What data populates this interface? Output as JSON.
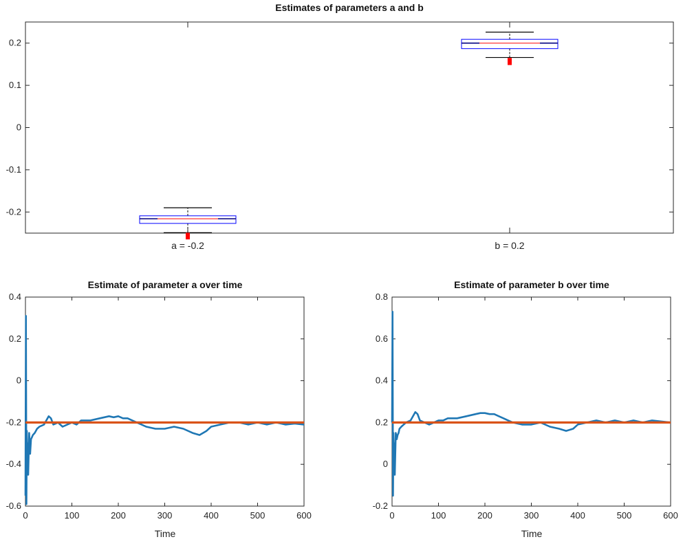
{
  "chart_data": [
    {
      "type": "box",
      "title": "Estimates of parameters a and b",
      "categories": [
        "a = -0.2",
        "b = 0.2"
      ],
      "ylim": [
        -0.25,
        0.25
      ],
      "yticks": [
        "0.2",
        "0.1",
        "0",
        "-0.1",
        "-0.2"
      ],
      "boxes": [
        {
          "name": "a = -0.2",
          "whisker_low": -0.249,
          "q1": -0.227,
          "median": -0.216,
          "q3": -0.209,
          "whisker_high": -0.19,
          "outliers": [
            -0.254,
            -0.256,
            -0.258,
            -0.26
          ]
        },
        {
          "name": "b = 0.2",
          "whisker_low": 0.166,
          "q1": 0.187,
          "median": 0.2,
          "q3": 0.209,
          "whisker_high": 0.226,
          "outliers": [
            0.153,
            0.156,
            0.16
          ]
        }
      ],
      "colors": {
        "box": "#0000ff",
        "median": "#ff0000",
        "whisker": "#000000",
        "outlier": "#ff0000"
      },
      "grid": false
    },
    {
      "type": "line",
      "title": "Estimate of parameter a over time",
      "xlabel": "Time",
      "xlim": [
        0,
        600
      ],
      "ylim": [
        -0.6,
        0.4
      ],
      "xticks": [
        "0",
        "100",
        "200",
        "300",
        "400",
        "500",
        "600"
      ],
      "yticks": [
        "0.4",
        "0.2",
        "0",
        "-0.2",
        "-0.4",
        "-0.6"
      ],
      "series": [
        {
          "x": [
            0,
            1,
            2,
            3,
            4,
            5,
            6,
            8,
            10,
            12,
            14,
            16,
            20,
            25,
            30,
            40,
            50,
            55,
            60,
            70,
            80,
            90,
            100,
            110,
            120,
            140,
            160,
            180,
            190,
            200,
            210,
            220,
            230,
            240,
            250,
            260,
            280,
            300,
            320,
            340,
            360,
            375,
            390,
            400,
            420,
            440,
            460,
            480,
            500,
            520,
            540,
            560,
            580,
            600
          ],
          "y": [
            -0.55,
            0.31,
            -0.59,
            -0.24,
            -0.36,
            -0.3,
            -0.45,
            -0.25,
            -0.35,
            -0.28,
            -0.27,
            -0.26,
            -0.25,
            -0.23,
            -0.22,
            -0.21,
            -0.17,
            -0.18,
            -0.21,
            -0.2,
            -0.22,
            -0.21,
            -0.2,
            -0.21,
            -0.19,
            -0.19,
            -0.18,
            -0.17,
            -0.175,
            -0.17,
            -0.18,
            -0.18,
            -0.19,
            -0.2,
            -0.21,
            -0.22,
            -0.23,
            -0.23,
            -0.22,
            -0.23,
            -0.25,
            -0.26,
            -0.24,
            -0.22,
            -0.21,
            -0.2,
            -0.2,
            -0.21,
            -0.2,
            -0.21,
            -0.2,
            -0.21,
            -0.205,
            -0.21
          ],
          "color": "#1f77b4"
        },
        {
          "x": [
            0,
            600
          ],
          "y": [
            -0.2,
            -0.2
          ],
          "color": "#d95319"
        }
      ]
    },
    {
      "type": "line",
      "title": "Estimate of parameter b over time",
      "xlabel": "Time",
      "xlim": [
        0,
        600
      ],
      "ylim": [
        -0.2,
        0.8
      ],
      "xticks": [
        "0",
        "100",
        "200",
        "300",
        "400",
        "500",
        "600"
      ],
      "yticks": [
        "0.8",
        "0.6",
        "0.4",
        "0.2",
        "0",
        "-0.2"
      ],
      "series": [
        {
          "x": [
            0,
            1,
            2,
            3,
            4,
            5,
            6,
            8,
            10,
            12,
            14,
            16,
            20,
            25,
            30,
            40,
            50,
            55,
            60,
            70,
            80,
            90,
            100,
            110,
            120,
            140,
            160,
            180,
            190,
            200,
            210,
            220,
            230,
            240,
            250,
            260,
            280,
            300,
            320,
            340,
            360,
            375,
            390,
            400,
            420,
            440,
            460,
            480,
            500,
            520,
            540,
            560,
            580,
            600
          ],
          "y": [
            0.2,
            0.73,
            -0.15,
            0.15,
            0.05,
            0.1,
            -0.05,
            0.15,
            0.12,
            0.14,
            0.15,
            0.17,
            0.18,
            0.19,
            0.2,
            0.21,
            0.25,
            0.24,
            0.21,
            0.2,
            0.19,
            0.2,
            0.21,
            0.21,
            0.22,
            0.22,
            0.23,
            0.24,
            0.245,
            0.245,
            0.24,
            0.24,
            0.23,
            0.22,
            0.21,
            0.2,
            0.19,
            0.19,
            0.2,
            0.18,
            0.17,
            0.16,
            0.17,
            0.19,
            0.2,
            0.21,
            0.2,
            0.21,
            0.2,
            0.21,
            0.2,
            0.21,
            0.205,
            0.2
          ],
          "color": "#1f77b4"
        },
        {
          "x": [
            0,
            600
          ],
          "y": [
            0.2,
            0.2
          ],
          "color": "#d95319"
        }
      ]
    }
  ]
}
